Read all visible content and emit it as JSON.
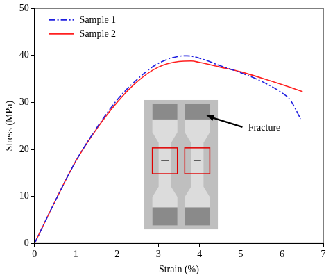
{
  "chart_data": {
    "type": "line",
    "x_label": "Strain (%)",
    "y_label": "Stress (MPa)",
    "xlim": [
      0,
      7
    ],
    "xticks": [
      0,
      1,
      2,
      3,
      4,
      5,
      6,
      7
    ],
    "ylim": [
      0,
      50
    ],
    "yticks": [
      0,
      10,
      20,
      30,
      40,
      50
    ],
    "grid": false,
    "legend": "upper left",
    "annotations": [
      "Fracture"
    ],
    "series": [
      {
        "name": "Sample 1",
        "color": "#1f1fe0",
        "line_style": "dashdot",
        "x": [
          0,
          0.5,
          1,
          1.5,
          2,
          2.5,
          3,
          3.5,
          3.7,
          4,
          4.5,
          5,
          5.5,
          6,
          6.2,
          6.45
        ],
        "values": [
          0,
          9,
          17.5,
          24.5,
          30.5,
          35,
          38.3,
          39.8,
          39.9,
          39.4,
          37.8,
          36.3,
          34.5,
          32,
          30.5,
          26.5
        ]
      },
      {
        "name": "Sample 2",
        "color": "#ff2020",
        "line_style": "solid",
        "x": [
          0,
          0.5,
          1,
          1.5,
          2,
          2.5,
          3,
          3.5,
          3.8,
          4,
          4.5,
          5,
          5.5,
          6,
          6.5
        ],
        "values": [
          0,
          9,
          17.5,
          24.3,
          30,
          34.5,
          37.5,
          38.7,
          38.8,
          38.5,
          37.5,
          36.5,
          35.2,
          33.8,
          32.3
        ]
      }
    ]
  }
}
